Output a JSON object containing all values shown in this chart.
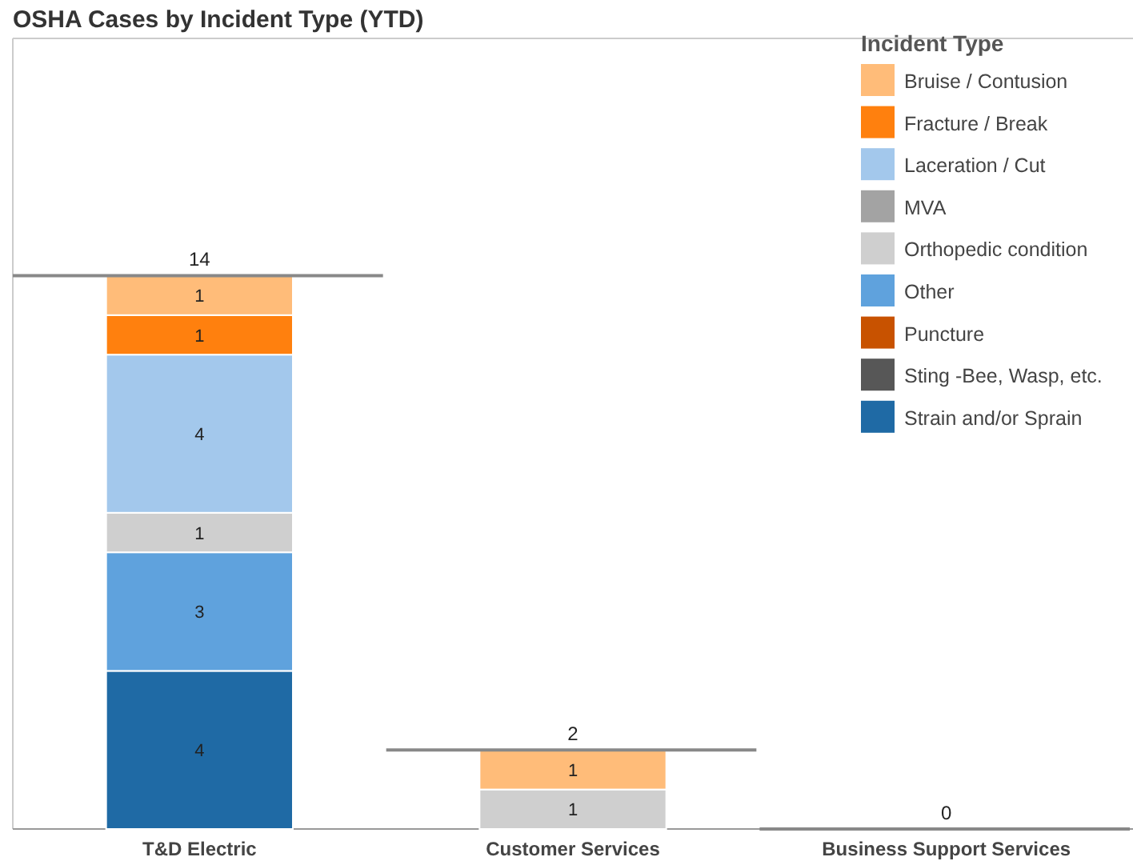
{
  "chart_data": {
    "type": "bar",
    "title": "OSHA Cases by Incident Type (YTD)",
    "legend_title": "Incident Type",
    "categories": [
      "T&D Electric",
      "Customer Services",
      "Business Support Services"
    ],
    "stacked": true,
    "totals": [
      "14",
      "2",
      "0"
    ],
    "ylim": [
      0,
      20
    ],
    "tick_labels": "x",
    "legend": "top right",
    "series": [
      {
        "name": "Strain and/or Sprain",
        "color": "#1f6aa5",
        "values": [
          4,
          0,
          0
        ],
        "value_labels": [
          "4",
          null,
          null
        ]
      },
      {
        "name": "Sting -Bee, Wasp, etc.",
        "color": "#575757",
        "values": [
          0,
          0,
          0
        ],
        "value_labels": [
          null,
          null,
          null
        ]
      },
      {
        "name": "Puncture",
        "color": "#c85200",
        "values": [
          0,
          0,
          0
        ],
        "value_labels": [
          null,
          null,
          null
        ]
      },
      {
        "name": "Other",
        "color": "#5fa2dd",
        "values": [
          3,
          0,
          0
        ],
        "value_labels": [
          "3",
          null,
          null
        ]
      },
      {
        "name": "Orthopedic condition",
        "color": "#cfcfcf",
        "values": [
          1,
          1,
          0
        ],
        "value_labels": [
          "1",
          "1",
          null
        ]
      },
      {
        "name": "MVA",
        "color": "#a3a3a3",
        "values": [
          0,
          0,
          0
        ],
        "value_labels": [
          null,
          null,
          null
        ]
      },
      {
        "name": "Laceration / Cut",
        "color": "#a3c8ec",
        "values": [
          4,
          0,
          0
        ],
        "value_labels": [
          "4",
          null,
          null
        ]
      },
      {
        "name": "Fracture / Break",
        "color": "#ff800e",
        "values": [
          1,
          0,
          0
        ],
        "value_labels": [
          "1",
          null,
          null
        ]
      },
      {
        "name": "Bruise / Contusion",
        "color": "#ffbc79",
        "values": [
          1,
          1,
          0
        ],
        "value_labels": [
          "1",
          "1",
          null
        ]
      }
    ]
  }
}
